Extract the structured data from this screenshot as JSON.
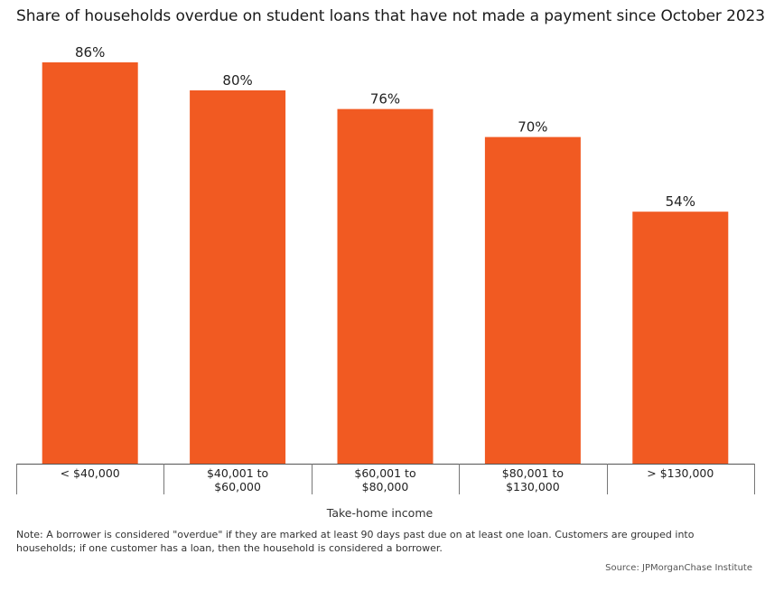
{
  "chart_data": {
    "type": "bar",
    "title": "Share of households overdue on student loans that have not made a payment since October 2023",
    "categories": [
      "< $40,000",
      "$40,001 to\n$60,000",
      "$60,001 to\n$80,000",
      "$80,001 to\n$130,000",
      "> $130,000"
    ],
    "values": [
      86,
      80,
      76,
      70,
      54
    ],
    "value_labels": [
      "86%",
      "80%",
      "76%",
      "70%",
      "54%"
    ],
    "xlabel": "Take-home income",
    "ylabel": "",
    "ylim": [
      0,
      90
    ],
    "grid": false,
    "bar_color": "#F15A22"
  },
  "note": "Note: A borrower is considered \"overdue\" if they are marked at least 90 days past due on at least one loan. Customers are grouped into households; if one customer has a loan, then the household is considered a borrower.",
  "source": "Source: JPMorganChase Institute"
}
